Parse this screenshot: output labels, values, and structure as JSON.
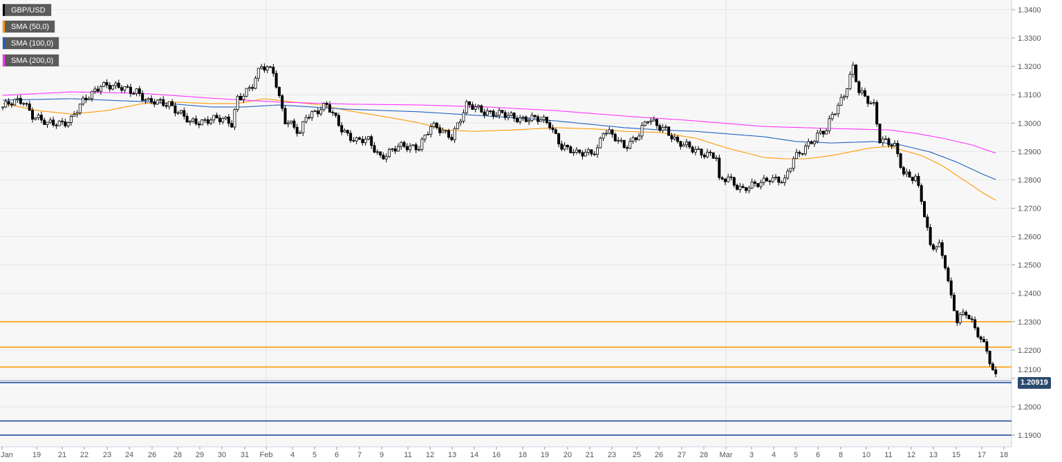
{
  "chart_data": {
    "type": "candlestick",
    "title": "GBP/USD",
    "legend": [
      {
        "label": "GBP/USD",
        "color": "#000000"
      },
      {
        "label": "SMA (50,0)",
        "color": "#ff9900"
      },
      {
        "label": "SMA (100,0)",
        "color": "#1f5fbf"
      },
      {
        "label": "SMA (200,0)",
        "color": "#ff33ff"
      }
    ],
    "ylim": [
      1.1857,
      1.3434
    ],
    "y_ticks": [
      "1.3400",
      "1.3300",
      "1.3200",
      "1.3100",
      "1.3000",
      "1.2900",
      "1.2800",
      "1.2700",
      "1.2600",
      "1.2500",
      "1.2400",
      "1.2300",
      "1.2200",
      "1.2100",
      "1.2000",
      "1.1900"
    ],
    "x_ticks": [
      "Jan",
      "19",
      "21",
      "22",
      "23",
      "24",
      "26",
      "28",
      "29",
      "30",
      "31",
      "Feb",
      "4",
      "5",
      "6",
      "7",
      "9",
      "11",
      "12",
      "13",
      "14",
      "16",
      "18",
      "19",
      "20",
      "21",
      "23",
      "25",
      "26",
      "27",
      "28",
      "Mar",
      "3",
      "4",
      "5",
      "6",
      "8",
      "10",
      "11",
      "12",
      "13",
      "15",
      "17",
      "18"
    ],
    "bars": 335,
    "price_path": [
      [
        0,
        1.3057
      ],
      [
        7,
        1.3081
      ],
      [
        10,
        1.3032
      ],
      [
        15,
        1.2991
      ],
      [
        23,
        1.3015
      ],
      [
        26,
        1.3057
      ],
      [
        33,
        1.3142
      ],
      [
        38,
        1.3122
      ],
      [
        45,
        1.3118
      ],
      [
        49,
        1.3069
      ],
      [
        56,
        1.3074
      ],
      [
        63,
        1.2996
      ],
      [
        70,
        1.302
      ],
      [
        77,
        1.2996
      ],
      [
        79,
        1.3093
      ],
      [
        84,
        1.313
      ],
      [
        87,
        1.3195
      ],
      [
        91,
        1.3191
      ],
      [
        93,
        1.3093
      ],
      [
        95,
        1.3008
      ],
      [
        100,
        1.2959
      ],
      [
        102,
        1.3032
      ],
      [
        109,
        1.3057
      ],
      [
        114,
        1.2984
      ],
      [
        119,
        1.2935
      ],
      [
        123,
        1.2935
      ],
      [
        127,
        1.2886
      ],
      [
        133,
        1.2911
      ],
      [
        140,
        1.2923
      ],
      [
        144,
        1.2984
      ],
      [
        151,
        1.2959
      ],
      [
        156,
        1.3057
      ],
      [
        163,
        1.3044
      ],
      [
        170,
        1.302
      ],
      [
        177,
        1.302
      ],
      [
        184,
        1.2996
      ],
      [
        188,
        1.2923
      ],
      [
        193,
        1.2886
      ],
      [
        200,
        1.2911
      ],
      [
        202,
        1.2971
      ],
      [
        209,
        1.2923
      ],
      [
        214,
        1.2959
      ],
      [
        217,
        1.3008
      ],
      [
        223,
        1.2984
      ],
      [
        227,
        1.2923
      ],
      [
        233,
        1.2911
      ],
      [
        240,
        1.2874
      ],
      [
        241,
        1.2789
      ],
      [
        244,
        1.2813
      ],
      [
        249,
        1.2764
      ],
      [
        253,
        1.2777
      ],
      [
        258,
        1.2813
      ],
      [
        263,
        1.2789
      ],
      [
        266,
        1.2874
      ],
      [
        270,
        1.2923
      ],
      [
        277,
        1.2971
      ],
      [
        279,
        1.3032
      ],
      [
        283,
        1.3105
      ],
      [
        286,
        1.3191
      ],
      [
        288,
        1.3105
      ],
      [
        293,
        1.3069
      ],
      [
        295,
        1.2947
      ],
      [
        300,
        1.2911
      ],
      [
        303,
        1.2825
      ],
      [
        307,
        1.2813
      ],
      [
        309,
        1.2728
      ],
      [
        312,
        1.2558
      ],
      [
        315,
        1.257
      ],
      [
        317,
        1.2509
      ],
      [
        319,
        1.2387
      ],
      [
        321,
        1.2302
      ],
      [
        324,
        1.2326
      ],
      [
        328,
        1.2265
      ],
      [
        331,
        1.2204
      ],
      [
        333,
        1.2119
      ],
      [
        334,
        1.21
      ]
    ],
    "sma50": [
      [
        0,
        1.3069
      ],
      [
        12,
        1.3044
      ],
      [
        23,
        1.3032
      ],
      [
        35,
        1.3044
      ],
      [
        47,
        1.3069
      ],
      [
        58,
        1.3074
      ],
      [
        70,
        1.3069
      ],
      [
        79,
        1.3069
      ],
      [
        88,
        1.3086
      ],
      [
        98,
        1.3074
      ],
      [
        107,
        1.3064
      ],
      [
        116,
        1.3044
      ],
      [
        130,
        1.302
      ],
      [
        140,
        1.3001
      ],
      [
        149,
        1.2976
      ],
      [
        158,
        1.2971
      ],
      [
        172,
        1.2976
      ],
      [
        186,
        1.2984
      ],
      [
        200,
        1.2979
      ],
      [
        209,
        1.2971
      ],
      [
        221,
        1.2967
      ],
      [
        233,
        1.2947
      ],
      [
        244,
        1.2911
      ],
      [
        256,
        1.2879
      ],
      [
        263,
        1.2874
      ],
      [
        270,
        1.2874
      ],
      [
        279,
        1.2886
      ],
      [
        291,
        1.2911
      ],
      [
        298,
        1.2918
      ],
      [
        302,
        1.2906
      ],
      [
        309,
        1.2886
      ],
      [
        316,
        1.285
      ],
      [
        323,
        1.2801
      ],
      [
        330,
        1.2752
      ],
      [
        334,
        1.2728
      ]
    ],
    "sma100": [
      [
        0,
        1.3081
      ],
      [
        23,
        1.3086
      ],
      [
        47,
        1.3076
      ],
      [
        70,
        1.3057
      ],
      [
        81,
        1.3057
      ],
      [
        93,
        1.3064
      ],
      [
        116,
        1.3049
      ],
      [
        140,
        1.304
      ],
      [
        163,
        1.3025
      ],
      [
        186,
        1.3008
      ],
      [
        209,
        1.2984
      ],
      [
        221,
        1.2976
      ],
      [
        233,
        1.2971
      ],
      [
        256,
        1.2952
      ],
      [
        267,
        1.2935
      ],
      [
        279,
        1.293
      ],
      [
        293,
        1.2935
      ],
      [
        302,
        1.2923
      ],
      [
        312,
        1.2898
      ],
      [
        321,
        1.2862
      ],
      [
        330,
        1.2818
      ],
      [
        334,
        1.2801
      ]
    ],
    "sma200": [
      [
        0,
        1.3098
      ],
      [
        23,
        1.311
      ],
      [
        47,
        1.3105
      ],
      [
        70,
        1.3088
      ],
      [
        93,
        1.3074
      ],
      [
        116,
        1.3067
      ],
      [
        140,
        1.3064
      ],
      [
        163,
        1.3057
      ],
      [
        186,
        1.3044
      ],
      [
        209,
        1.3025
      ],
      [
        233,
        1.3008
      ],
      [
        256,
        1.2988
      ],
      [
        279,
        1.2981
      ],
      [
        298,
        1.2976
      ],
      [
        307,
        1.2964
      ],
      [
        316,
        1.2947
      ],
      [
        326,
        1.2923
      ],
      [
        334,
        1.2894
      ]
    ],
    "horizontal_levels": [
      {
        "price": 1.23,
        "color": "#ff9900"
      },
      {
        "price": 1.221,
        "color": "#ff9900"
      },
      {
        "price": 1.214,
        "color": "#ff9900"
      },
      {
        "price": 1.2085,
        "color": "#1f4e9c"
      },
      {
        "price": 1.195,
        "color": "#1f4e9c"
      },
      {
        "price": 1.19,
        "color": "#1f4e9c"
      }
    ],
    "last_price": "1.20919",
    "last_price_value": 1.20919
  }
}
